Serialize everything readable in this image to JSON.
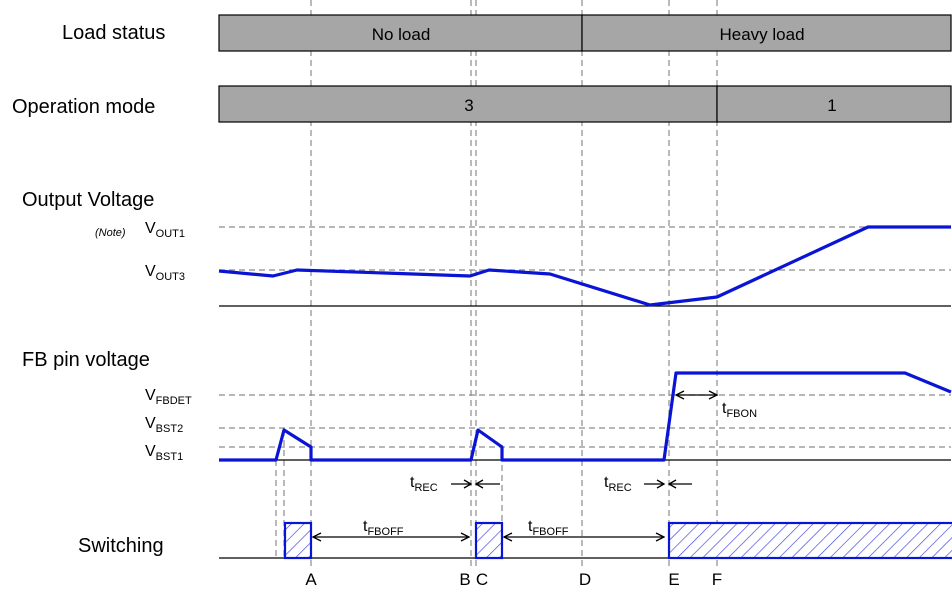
{
  "rows": {
    "load_status": "Load status",
    "operation_mode": "Operation mode",
    "output_voltage": "Output Voltage",
    "fb_pin_voltage": "FB pin voltage",
    "switching": "Switching"
  },
  "load_status_segments": [
    "No load",
    "Heavy load"
  ],
  "operation_mode_segments": [
    "3",
    "1"
  ],
  "levels": {
    "note": "(Note)",
    "vout1": {
      "main": "V",
      "sub": "OUT1"
    },
    "vout3": {
      "main": "V",
      "sub": "OUT3"
    },
    "vfbdet": {
      "main": "V",
      "sub": "FBDET"
    },
    "vbst2": {
      "main": "V",
      "sub": "BST2"
    },
    "vbst1": {
      "main": "V",
      "sub": "BST1"
    }
  },
  "times": {
    "t_fbon": {
      "main": "t",
      "sub": "FBON"
    },
    "t_rec": {
      "main": "t",
      "sub": "REC"
    },
    "t_fboff": {
      "main": "t",
      "sub": "FBOFF"
    }
  },
  "markers": [
    "A",
    "B",
    "C",
    "D",
    "E",
    "F"
  ],
  "colors": {
    "waveform": "#0a14d4",
    "status_bar": "#a6a6a6",
    "guide": "#8c8c8c"
  }
}
